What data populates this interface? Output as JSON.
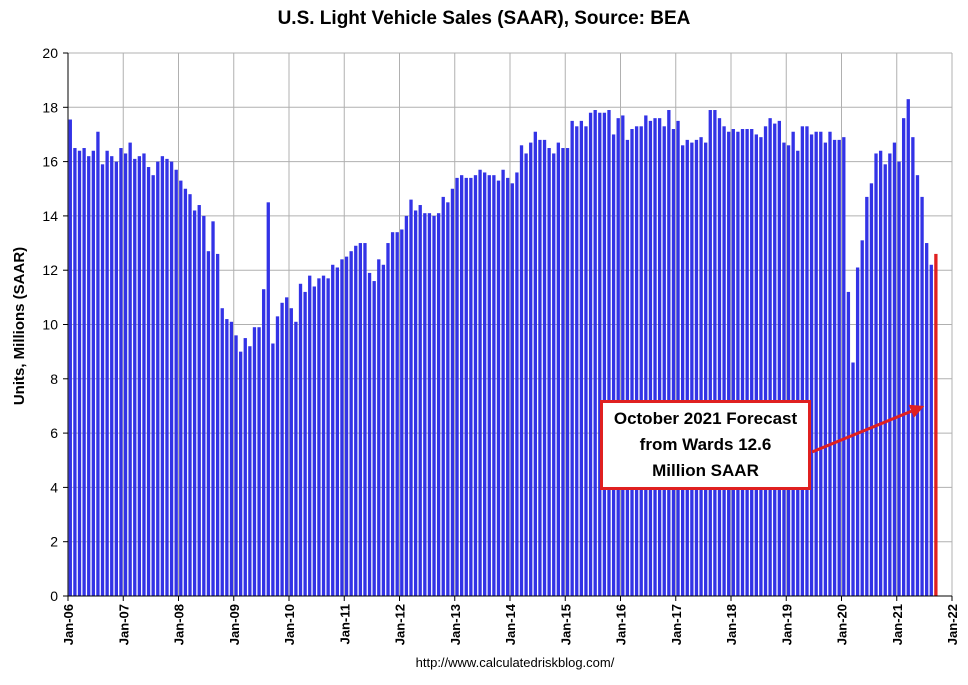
{
  "chart_data": {
    "type": "bar",
    "title": "U.S. Light Vehicle Sales (SAAR), Source: BEA",
    "ylabel": "Units, Millions (SAAR)",
    "xlabel": "",
    "ylim": [
      0,
      20
    ],
    "yticks": [
      0,
      2,
      4,
      6,
      8,
      10,
      12,
      14,
      16,
      18,
      20
    ],
    "start_month": "Jan-06",
    "xticks": [
      "Jan-06",
      "Jan-07",
      "Jan-08",
      "Jan-09",
      "Jan-10",
      "Jan-11",
      "Jan-12",
      "Jan-13",
      "Jan-14",
      "Jan-15",
      "Jan-16",
      "Jan-17",
      "Jan-18",
      "Jan-19",
      "Jan-20",
      "Jan-21",
      "Jan-22"
    ],
    "grid": true,
    "colors": {
      "bars": "#3333e6",
      "forecast": "#e02020",
      "grid": "#b0b0b0"
    },
    "values": [
      17.55,
      16.5,
      16.4,
      16.5,
      16.2,
      16.4,
      17.1,
      15.9,
      16.4,
      16.2,
      16.0,
      16.5,
      16.3,
      16.7,
      16.1,
      16.2,
      16.3,
      15.8,
      15.5,
      16.0,
      16.2,
      16.1,
      16.0,
      15.7,
      15.3,
      15.0,
      14.8,
      14.2,
      14.4,
      14.0,
      12.7,
      13.8,
      12.6,
      10.6,
      10.2,
      10.1,
      9.6,
      9.0,
      9.5,
      9.2,
      9.9,
      9.9,
      11.3,
      14.5,
      9.3,
      10.3,
      10.8,
      11.0,
      10.6,
      10.1,
      11.5,
      11.2,
      11.8,
      11.4,
      11.7,
      11.8,
      11.7,
      12.2,
      12.1,
      12.4,
      12.5,
      12.7,
      12.9,
      13.0,
      13.0,
      11.9,
      11.6,
      12.4,
      12.2,
      13.0,
      13.4,
      13.4,
      13.5,
      14.0,
      14.6,
      14.2,
      14.4,
      14.1,
      14.1,
      14.0,
      14.1,
      14.7,
      14.5,
      15.0,
      15.4,
      15.5,
      15.4,
      15.4,
      15.5,
      15.7,
      15.6,
      15.5,
      15.5,
      15.3,
      15.7,
      15.4,
      15.2,
      15.6,
      16.6,
      16.3,
      16.7,
      17.1,
      16.8,
      16.8,
      16.5,
      16.3,
      16.7,
      16.5,
      16.5,
      17.5,
      17.3,
      17.5,
      17.3,
      17.8,
      17.9,
      17.8,
      17.8,
      17.9,
      17.0,
      17.6,
      17.7,
      16.8,
      17.2,
      17.3,
      17.3,
      17.7,
      17.5,
      17.6,
      17.6,
      17.3,
      17.9,
      17.2,
      17.5,
      16.6,
      16.8,
      16.7,
      16.8,
      16.9,
      16.7,
      17.9,
      17.9,
      17.6,
      17.3,
      17.1,
      17.2,
      17.1,
      17.2,
      17.2,
      17.2,
      17.0,
      16.9,
      17.3,
      17.6,
      17.4,
      17.5,
      16.7,
      16.6,
      17.1,
      16.4,
      17.3,
      17.3,
      17.0,
      17.1,
      17.1,
      16.7,
      17.1,
      16.8,
      16.8,
      16.9,
      11.2,
      8.6,
      12.1,
      13.1,
      14.7,
      15.2,
      16.3,
      16.4,
      15.9,
      16.3,
      16.7,
      16.0,
      17.6,
      18.3,
      16.9,
      15.5,
      14.7,
      13.0,
      12.2
    ],
    "forecast": {
      "month": "Oct-21",
      "value": 12.6
    },
    "annotation": "October 2021 Forecast\nfrom Wards 12.6\nMillion SAAR"
  },
  "source_url": "http://www.calculatedriskblog.com/"
}
